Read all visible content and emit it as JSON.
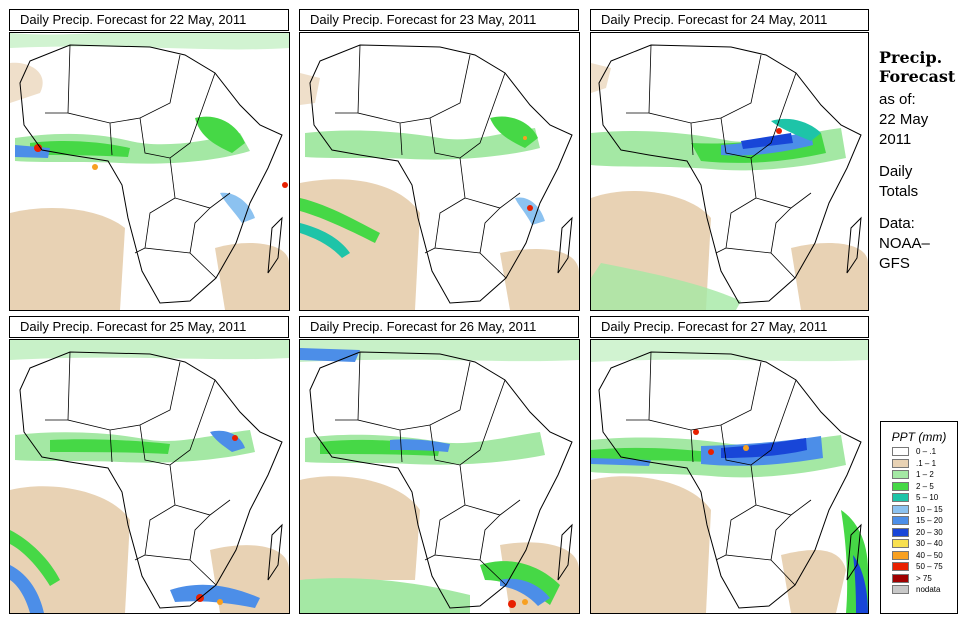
{
  "panels": [
    {
      "title": "Daily Precip. Forecast for  22 May, 2011"
    },
    {
      "title": "Daily Precip. Forecast for  23 May, 2011"
    },
    {
      "title": "Daily Precip. Forecast for  24 May, 2011"
    },
    {
      "title": "Daily Precip. Forecast for  25 May, 2011"
    },
    {
      "title": "Daily Precip. Forecast for  26 May, 2011"
    },
    {
      "title": "Daily Precip. Forecast for  27 May, 2011"
    }
  ],
  "sidebar": {
    "heading_line1": "Precip.",
    "heading_line2": "Forecast",
    "asof_label": "as of:",
    "date_line1": "22 May",
    "date_line2": "2011",
    "totals_line1": "Daily",
    "totals_line2": "Totals",
    "data_label": "Data:",
    "source_line1": "NOAA–",
    "source_line2": "GFS"
  },
  "legend": {
    "title": "PPT (mm)",
    "items": [
      {
        "label": "0 – .1",
        "color": "#ffffff"
      },
      {
        "label": ".1 – 1",
        "color": "#e8d2b4"
      },
      {
        "label": "1 – 2",
        "color": "#a4e8a4"
      },
      {
        "label": "2 – 5",
        "color": "#46d846"
      },
      {
        "label": "5 – 10",
        "color": "#1ec4a8"
      },
      {
        "label": "10 – 15",
        "color": "#8cc2f0"
      },
      {
        "label": "15 – 20",
        "color": "#4c8ee8"
      },
      {
        "label": "20 – 30",
        "color": "#1846d8"
      },
      {
        "label": "30 – 40",
        "color": "#f8e050"
      },
      {
        "label": "40 – 50",
        "color": "#f8a020"
      },
      {
        "label": "50 – 75",
        "color": "#e82000"
      },
      {
        "label": "> 75",
        "color": "#a00000"
      },
      {
        "label": "nodata",
        "color": "#c8c8c8"
      }
    ]
  }
}
